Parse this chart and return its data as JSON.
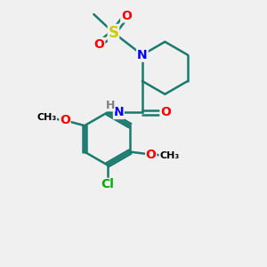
{
  "bg_color": "#f0f0f0",
  "atom_colors": {
    "C": "#1a7a6e",
    "N": "#0000ff",
    "O": "#ff0000",
    "S": "#cccc00",
    "Cl": "#00aa00",
    "H": "#808080"
  },
  "bond_color": "#1a7a6e",
  "bond_width": 1.8,
  "font_size": 10,
  "fig_size": [
    3.0,
    3.0
  ]
}
